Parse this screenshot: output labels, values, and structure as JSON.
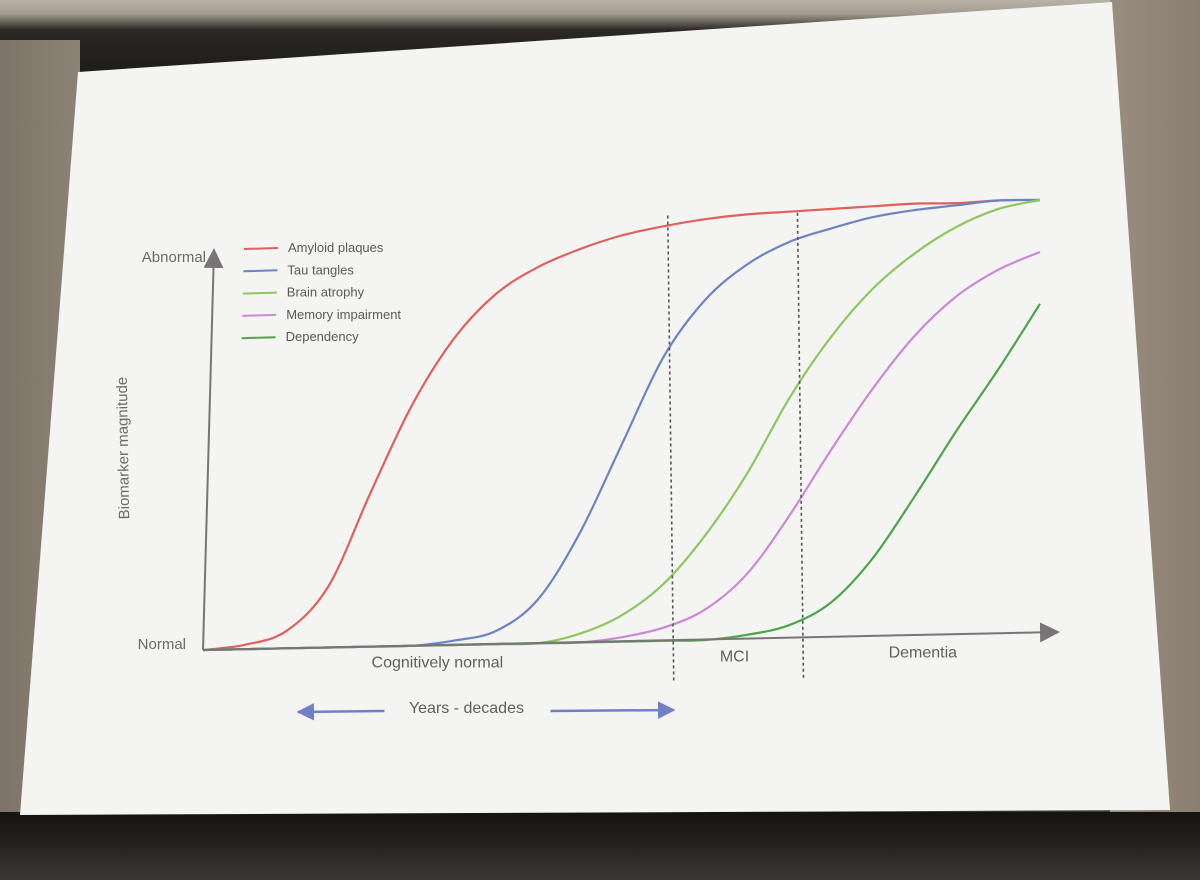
{
  "chart_data": {
    "type": "line",
    "title": "",
    "ylabel": "Biomarker magnitude",
    "y_ticks": [
      "Normal",
      "Abnormal"
    ],
    "ylim": [
      0,
      1
    ],
    "xlim": [
      0,
      10
    ],
    "x": [
      0,
      0.5,
      1,
      1.5,
      2,
      2.5,
      3,
      3.5,
      4,
      4.5,
      5,
      5.5,
      6,
      6.5,
      7,
      7.5,
      8,
      8.5,
      9,
      9.5,
      10
    ],
    "series": [
      {
        "name": "Amyloid plaques",
        "color": "#e0605c",
        "values": [
          0.0,
          0.01,
          0.04,
          0.14,
          0.35,
          0.55,
          0.7,
          0.8,
          0.86,
          0.9,
          0.93,
          0.95,
          0.965,
          0.975,
          0.98,
          0.985,
          0.99,
          0.995,
          0.995,
          1.0,
          1.0
        ]
      },
      {
        "name": "Tau tangles",
        "color": "#6b84c4",
        "values": [
          0.0,
          0.0,
          0.0,
          0.0,
          0.0,
          0.0,
          0.01,
          0.03,
          0.1,
          0.25,
          0.45,
          0.65,
          0.78,
          0.86,
          0.91,
          0.94,
          0.965,
          0.98,
          0.99,
          1.0,
          1.0
        ]
      },
      {
        "name": "Brain atrophy",
        "color": "#8cc860",
        "values": [
          0.0,
          0.0,
          0.0,
          0.0,
          0.0,
          0.0,
          0.0,
          0.0,
          0.0,
          0.02,
          0.06,
          0.13,
          0.24,
          0.38,
          0.55,
          0.69,
          0.8,
          0.88,
          0.94,
          0.98,
          1.0
        ]
      },
      {
        "name": "Memory impairment",
        "color": "#cc88d6",
        "values": [
          0.0,
          0.0,
          0.0,
          0.0,
          0.0,
          0.0,
          0.0,
          0.0,
          0.0,
          0.0,
          0.01,
          0.03,
          0.07,
          0.15,
          0.28,
          0.43,
          0.57,
          0.69,
          0.78,
          0.84,
          0.88
        ]
      },
      {
        "name": "Dependency",
        "color": "#4ea64a",
        "values": [
          0.0,
          0.0,
          0.0,
          0.0,
          0.0,
          0.0,
          0.0,
          0.0,
          0.0,
          0.0,
          0.0,
          0.0,
          0.0,
          0.01,
          0.03,
          0.08,
          0.18,
          0.32,
          0.47,
          0.61,
          0.76
        ]
      }
    ],
    "stage_dividers": [
      5.6,
      7.15
    ],
    "stages": [
      {
        "label": "Cognitively normal",
        "x": 2.8
      },
      {
        "label": "MCI",
        "x": 6.35
      },
      {
        "label": "Dementia",
        "x": 8.6
      }
    ],
    "duration_label": "Years - decades",
    "duration_range": [
      0.6,
      5.6
    ],
    "legend_position": "top-left",
    "axis_color": "#7a7478",
    "duration_arrow_color": "#6e80c8",
    "grid": false
  }
}
